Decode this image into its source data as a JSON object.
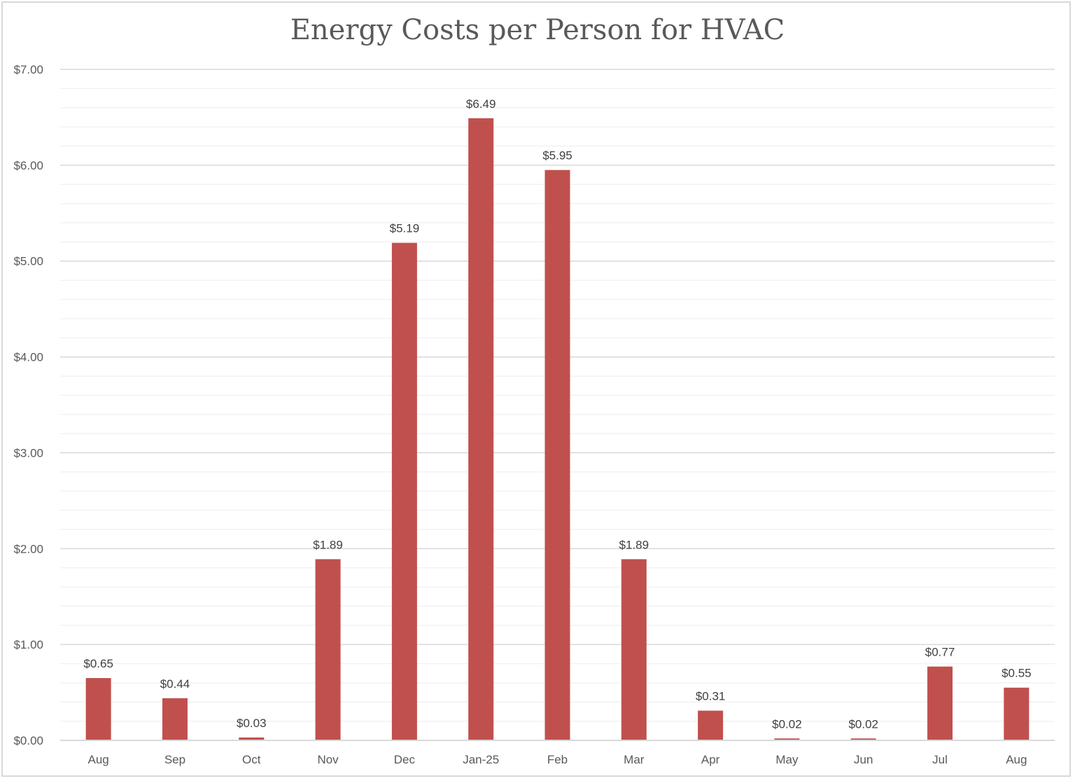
{
  "chart_data": {
    "type": "bar",
    "title": "Energy Costs per Person for HVAC",
    "xlabel": "",
    "ylabel": "",
    "categories": [
      "Aug",
      "Sep",
      "Oct",
      "Nov",
      "Dec",
      "Jan-25",
      "Feb",
      "Mar",
      "Apr",
      "May",
      "Jun",
      "Jul",
      "Aug"
    ],
    "values": [
      0.65,
      0.44,
      0.03,
      1.89,
      5.19,
      6.49,
      5.95,
      1.89,
      0.31,
      0.02,
      0.02,
      0.77,
      0.55
    ],
    "data_labels": [
      "$0.65",
      "$0.44",
      "$0.03",
      "$1.89",
      "$5.19",
      "$6.49",
      "$5.95",
      "$1.89",
      "$0.31",
      "$0.02",
      "$0.02",
      "$0.77",
      "$0.55"
    ],
    "ylim": [
      0,
      7
    ],
    "y_major_step": 1,
    "y_minor_step": 0.2,
    "y_tick_labels": [
      "$0.00",
      "$1.00",
      "$2.00",
      "$3.00",
      "$4.00",
      "$5.00",
      "$6.00",
      "$7.00"
    ],
    "grid": true,
    "legend": "none",
    "colors": {
      "bar": "#c0504d",
      "major_grid": "#d9d9d9",
      "minor_grid": "#f2f2f2",
      "text": "#595959"
    }
  }
}
